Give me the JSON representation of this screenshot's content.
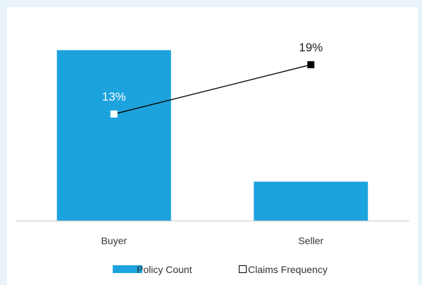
{
  "chart_data": {
    "type": "bar+line",
    "title": "",
    "categories": [
      "Buyer",
      "Seller"
    ],
    "series": [
      {
        "name": "Policy Count",
        "kind": "bar",
        "axis": "primary",
        "values": [
          100,
          23
        ],
        "color": "#1ca3de"
      },
      {
        "name": "Claims Frequency",
        "kind": "line",
        "axis": "secondary",
        "values": [
          13,
          19
        ],
        "labels": [
          "13%",
          "19%"
        ],
        "label_colors": [
          "#ffffff",
          "#222222"
        ],
        "marker_colors": [
          "#ffffff",
          "#000000"
        ],
        "line_color": "#000000"
      }
    ],
    "primary_axis": {
      "ylim": [
        0,
        117
      ],
      "visible": false
    },
    "secondary_axis": {
      "ylim": [
        0,
        24.3
      ],
      "visible": false
    },
    "grid": false,
    "legend": "bottom"
  }
}
